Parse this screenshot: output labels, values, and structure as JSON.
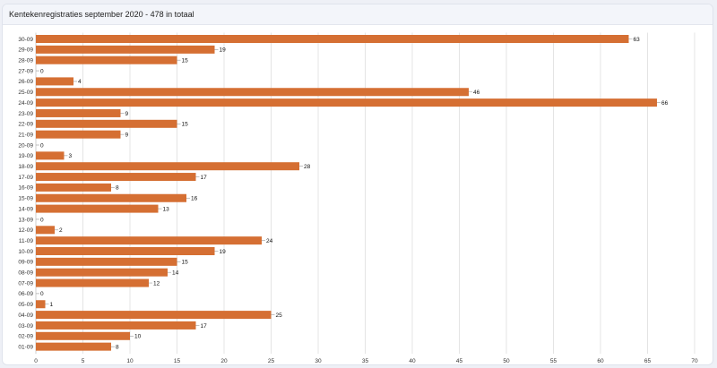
{
  "card": {
    "title": "Kentekenregistraties september 2020 - 478 in totaal"
  },
  "colors": {
    "bar": "#d56f33",
    "grid": "#e4e4e4",
    "axis_text": "#333333"
  },
  "chart_data": {
    "type": "bar",
    "orientation": "horizontal",
    "title": "Kentekenregistraties september 2020 - 478 in totaal",
    "xlabel": "",
    "ylabel": "",
    "xlim": [
      0,
      70
    ],
    "xticks": [
      0,
      5,
      10,
      15,
      20,
      25,
      30,
      35,
      40,
      45,
      50,
      55,
      60,
      65,
      70
    ],
    "grid": true,
    "legend": "none",
    "categories": [
      "30-09",
      "29-09",
      "28-09",
      "27-09",
      "26-09",
      "25-09",
      "24-09",
      "23-09",
      "22-09",
      "21-09",
      "20-09",
      "19-09",
      "18-09",
      "17-09",
      "16-09",
      "15-09",
      "14-09",
      "13-09",
      "12-09",
      "11-09",
      "10-09",
      "09-09",
      "08-09",
      "07-09",
      "06-09",
      "05-09",
      "04-09",
      "03-09",
      "02-09",
      "01-09"
    ],
    "values": [
      63,
      19,
      15,
      0,
      4,
      46,
      66,
      9,
      15,
      9,
      0,
      3,
      28,
      17,
      8,
      16,
      13,
      0,
      2,
      24,
      19,
      15,
      14,
      12,
      0,
      1,
      25,
      17,
      10,
      8
    ]
  }
}
